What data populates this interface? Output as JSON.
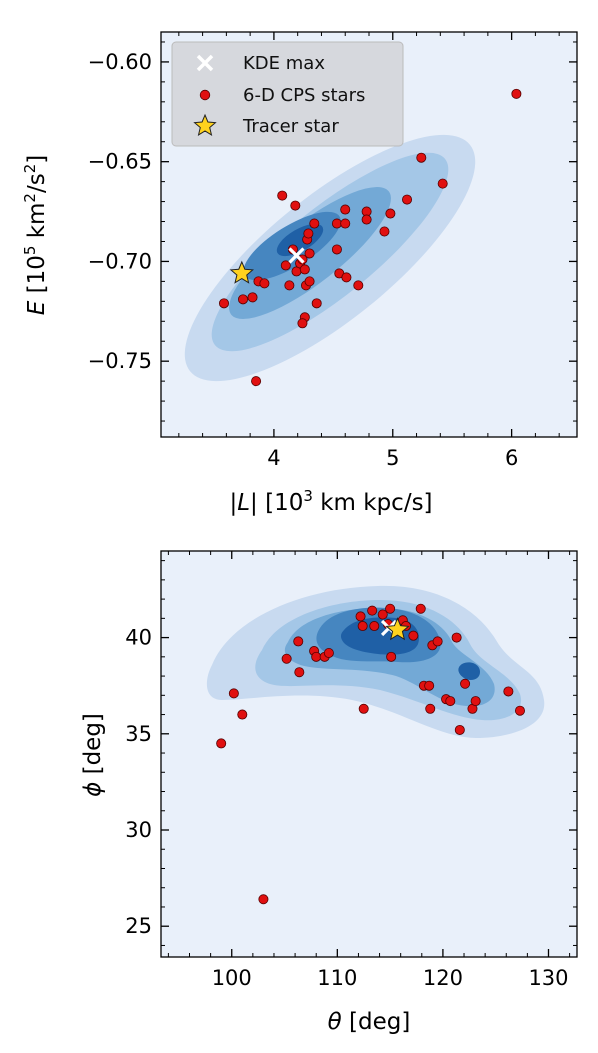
{
  "chart_data": [
    {
      "type": "scatter",
      "panel": "top",
      "xlabel": "|L| [10³ km kpc/s]",
      "ylabel": "E [10⁵ km²/s²]",
      "xlim": [
        3.05,
        6.55
      ],
      "ylim": [
        -0.788,
        -0.585
      ],
      "xticks": [
        4,
        5,
        6
      ],
      "yticks": [
        -0.6,
        -0.65,
        -0.7,
        -0.75
      ],
      "xtick_labels": [
        "4",
        "5",
        "6"
      ],
      "ytick_labels": [
        "−0.60",
        "−0.65",
        "−0.70",
        "−0.75"
      ],
      "legend": {
        "placement": "top-left",
        "entries": [
          "KDE max",
          "6-D CPS stars",
          "Tracer star"
        ]
      },
      "kde_max": {
        "x": 4.19,
        "y": -0.697
      },
      "tracer_star": {
        "x": 3.73,
        "y": -0.706
      },
      "cps_stars": [
        {
          "x": 3.58,
          "y": -0.721
        },
        {
          "x": 3.74,
          "y": -0.719
        },
        {
          "x": 3.82,
          "y": -0.718
        },
        {
          "x": 3.87,
          "y": -0.71
        },
        {
          "x": 3.92,
          "y": -0.711
        },
        {
          "x": 3.85,
          "y": -0.76
        },
        {
          "x": 4.07,
          "y": -0.667
        },
        {
          "x": 4.18,
          "y": -0.672
        },
        {
          "x": 4.1,
          "y": -0.702
        },
        {
          "x": 4.13,
          "y": -0.712
        },
        {
          "x": 4.16,
          "y": -0.694
        },
        {
          "x": 4.19,
          "y": -0.705
        },
        {
          "x": 4.22,
          "y": -0.701
        },
        {
          "x": 4.24,
          "y": -0.699
        },
        {
          "x": 4.26,
          "y": -0.704
        },
        {
          "x": 4.28,
          "y": -0.689
        },
        {
          "x": 4.29,
          "y": -0.686
        },
        {
          "x": 4.3,
          "y": -0.696
        },
        {
          "x": 4.34,
          "y": -0.681
        },
        {
          "x": 4.27,
          "y": -0.712
        },
        {
          "x": 4.3,
          "y": -0.71
        },
        {
          "x": 4.26,
          "y": -0.728
        },
        {
          "x": 4.24,
          "y": -0.731
        },
        {
          "x": 4.36,
          "y": -0.721
        },
        {
          "x": 4.53,
          "y": -0.681
        },
        {
          "x": 4.53,
          "y": -0.694
        },
        {
          "x": 4.55,
          "y": -0.706
        },
        {
          "x": 4.6,
          "y": -0.674
        },
        {
          "x": 4.6,
          "y": -0.681
        },
        {
          "x": 4.61,
          "y": -0.708
        },
        {
          "x": 4.78,
          "y": -0.675
        },
        {
          "x": 4.78,
          "y": -0.679
        },
        {
          "x": 4.71,
          "y": -0.712
        },
        {
          "x": 4.93,
          "y": -0.685
        },
        {
          "x": 4.98,
          "y": -0.676
        },
        {
          "x": 5.12,
          "y": -0.669
        },
        {
          "x": 5.24,
          "y": -0.648
        },
        {
          "x": 5.42,
          "y": -0.661
        },
        {
          "x": 6.04,
          "y": -0.616
        }
      ]
    },
    {
      "type": "scatter",
      "panel": "bottom",
      "xlabel": "θ [deg]",
      "ylabel": "ϕ [deg]",
      "xlim": [
        93.3,
        132.7
      ],
      "ylim": [
        23.4,
        44.5
      ],
      "xticks": [
        100,
        110,
        120,
        130
      ],
      "yticks": [
        25,
        30,
        35,
        40
      ],
      "xtick_labels": [
        "100",
        "110",
        "120",
        "130"
      ],
      "ytick_labels": [
        "25",
        "30",
        "35",
        "40"
      ],
      "kde_max": {
        "x": 114.9,
        "y": 40.5
      },
      "tracer_star": {
        "x": 115.7,
        "y": 40.4
      },
      "cps_stars": [
        {
          "x": 99.0,
          "y": 34.5
        },
        {
          "x": 100.2,
          "y": 37.1
        },
        {
          "x": 101.0,
          "y": 36.0
        },
        {
          "x": 103.0,
          "y": 26.4
        },
        {
          "x": 105.2,
          "y": 38.9
        },
        {
          "x": 106.3,
          "y": 39.8
        },
        {
          "x": 106.4,
          "y": 38.2
        },
        {
          "x": 107.8,
          "y": 39.3
        },
        {
          "x": 108.0,
          "y": 39.0
        },
        {
          "x": 108.8,
          "y": 39.0
        },
        {
          "x": 109.2,
          "y": 39.2
        },
        {
          "x": 112.2,
          "y": 41.1
        },
        {
          "x": 112.4,
          "y": 40.6
        },
        {
          "x": 112.5,
          "y": 36.3
        },
        {
          "x": 113.3,
          "y": 41.4
        },
        {
          "x": 113.5,
          "y": 40.6
        },
        {
          "x": 114.3,
          "y": 41.2
        },
        {
          "x": 114.8,
          "y": 40.7
        },
        {
          "x": 115.0,
          "y": 41.5
        },
        {
          "x": 115.1,
          "y": 39.0
        },
        {
          "x": 116.2,
          "y": 40.9
        },
        {
          "x": 116.5,
          "y": 40.6
        },
        {
          "x": 117.2,
          "y": 40.1
        },
        {
          "x": 117.9,
          "y": 41.5
        },
        {
          "x": 118.2,
          "y": 37.5
        },
        {
          "x": 118.7,
          "y": 37.5
        },
        {
          "x": 118.8,
          "y": 36.3
        },
        {
          "x": 119.0,
          "y": 39.6
        },
        {
          "x": 119.5,
          "y": 39.8
        },
        {
          "x": 120.3,
          "y": 36.8
        },
        {
          "x": 120.7,
          "y": 36.7
        },
        {
          "x": 121.3,
          "y": 40.0
        },
        {
          "x": 121.6,
          "y": 35.2
        },
        {
          "x": 122.1,
          "y": 37.6
        },
        {
          "x": 122.8,
          "y": 36.3
        },
        {
          "x": 123.1,
          "y": 36.7
        },
        {
          "x": 126.2,
          "y": 37.2
        },
        {
          "x": 127.3,
          "y": 36.2
        }
      ]
    }
  ],
  "colors": {
    "plot_background": "#e9f0fa",
    "kde_levels": [
      "#c8daf0",
      "#a4c7e7",
      "#73a9d6",
      "#4686c0",
      "#1f60a6"
    ],
    "cps_star_fill": "#e01010",
    "cps_star_edge": "#550000",
    "tracer_fill": "#ffd21e",
    "tracer_edge": "#222222",
    "kde_max": "#ffffff",
    "legend_bg": "#d4d6da"
  }
}
